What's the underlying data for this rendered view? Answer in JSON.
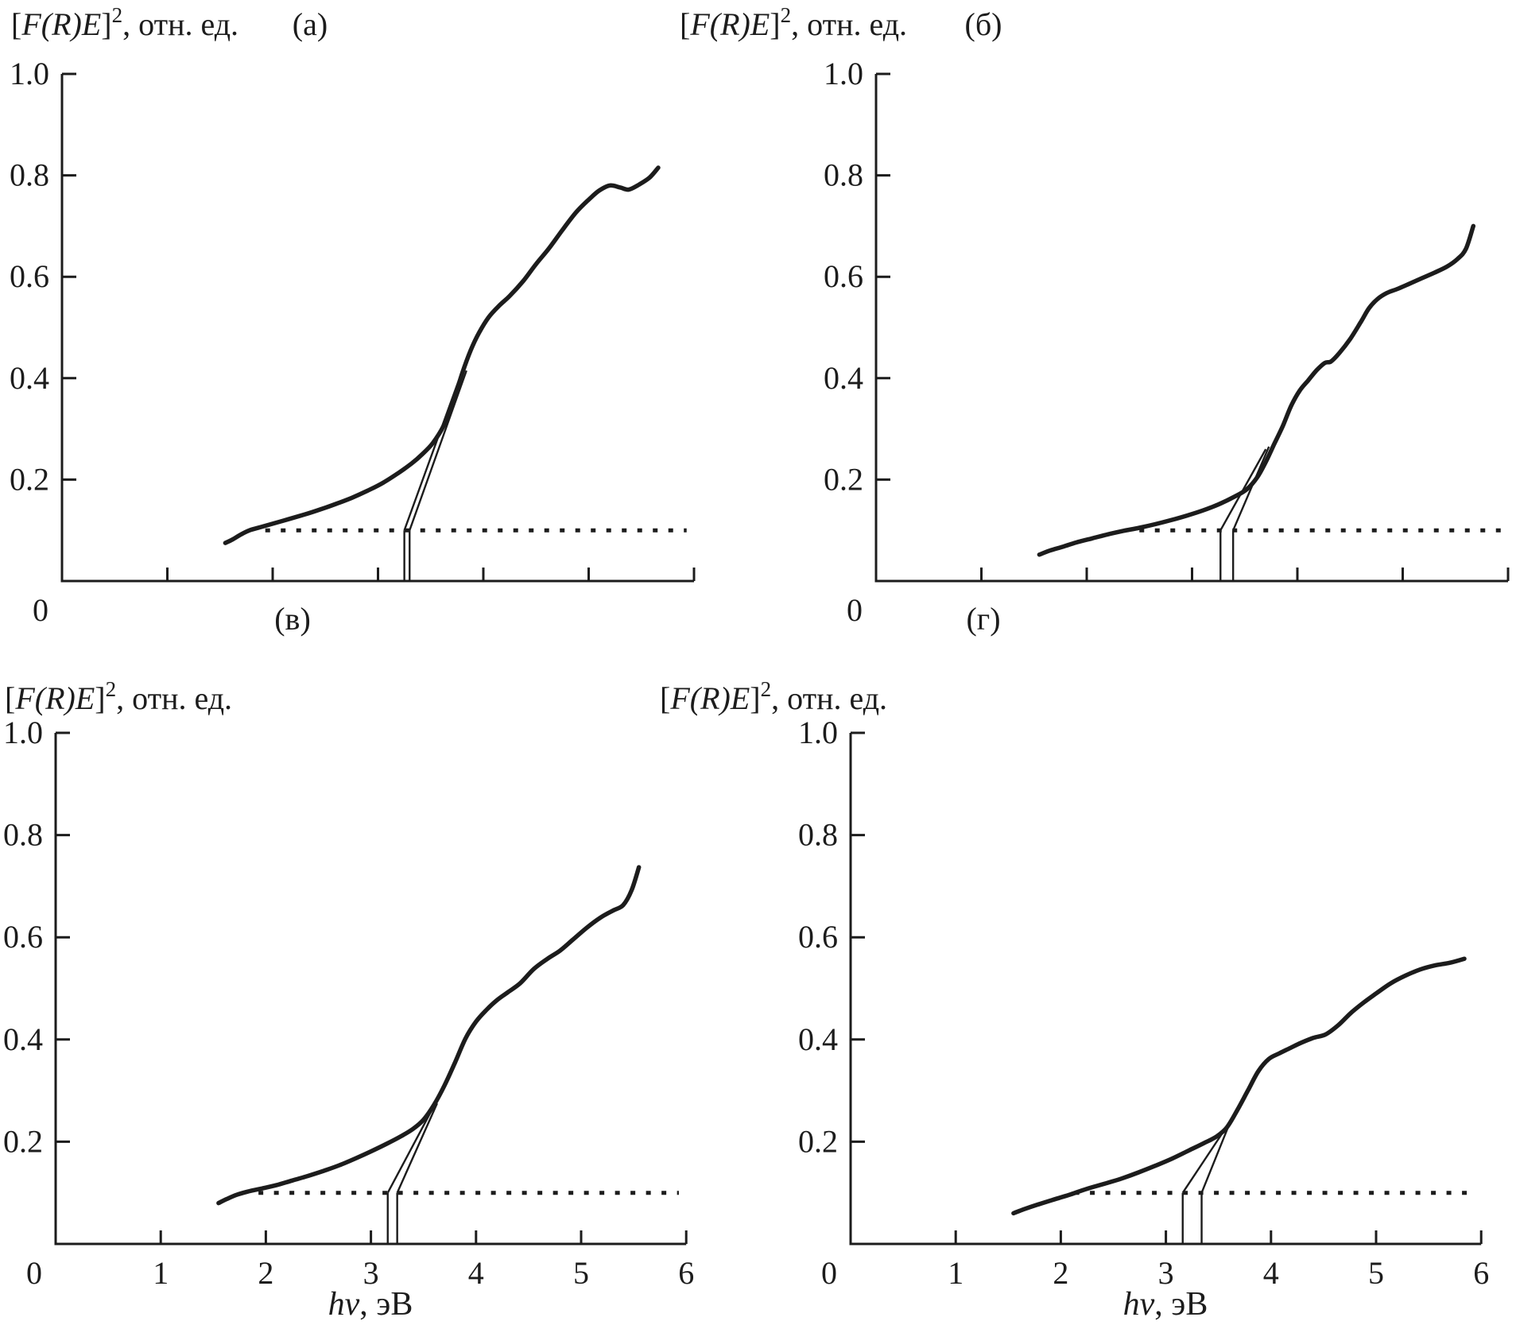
{
  "figure": {
    "background": "#ffffff",
    "ink_color": "#1c1c1c",
    "description": "Four-panel Tauc plot figure, Kubelka-Munk function squared vs photon energy, with tangent extrapolations to the 0.1 baseline marking optical band gaps"
  },
  "chart_data": [
    {
      "type": "line",
      "panel_label": "(а)",
      "title": "[F(R)E]², отн. ед.",
      "title_parts": {
        "open": "[",
        "body": "F(R)E",
        "close": "]",
        "sup": "2",
        "rest": ", отн. ед."
      },
      "xlabel": "",
      "xlabel_parts": null,
      "origin_label": "0",
      "x_tick_labels": [],
      "y_tick_labels": [
        "0.2",
        "0.4",
        "0.6",
        "0.8",
        "1.0"
      ],
      "xlim": [
        0,
        6
      ],
      "ylim": [
        0,
        1.0
      ],
      "grid": false,
      "legend": null,
      "baseline_y": 0.1,
      "baseline_x_range": [
        1.93,
        5.93
      ],
      "gap_marks_eV": [
        3.25,
        3.3
      ],
      "tangent_lines": [
        {
          "x1": 3.25,
          "y1": 0.1,
          "x2": 3.8,
          "y2": 0.415
        },
        {
          "x1": 3.3,
          "y1": 0.1,
          "x2": 3.84,
          "y2": 0.415
        }
      ],
      "curve": [
        [
          1.55,
          0.075
        ],
        [
          1.62,
          0.082
        ],
        [
          1.7,
          0.092
        ],
        [
          1.78,
          0.1
        ],
        [
          1.88,
          0.106
        ],
        [
          2.0,
          0.113
        ],
        [
          2.15,
          0.122
        ],
        [
          2.3,
          0.131
        ],
        [
          2.45,
          0.141
        ],
        [
          2.6,
          0.152
        ],
        [
          2.75,
          0.164
        ],
        [
          2.9,
          0.178
        ],
        [
          3.05,
          0.194
        ],
        [
          3.2,
          0.214
        ],
        [
          3.32,
          0.232
        ],
        [
          3.42,
          0.25
        ],
        [
          3.52,
          0.272
        ],
        [
          3.62,
          0.305
        ],
        [
          3.72,
          0.357
        ],
        [
          3.8,
          0.41
        ],
        [
          3.88,
          0.455
        ],
        [
          3.96,
          0.49
        ],
        [
          4.05,
          0.52
        ],
        [
          4.15,
          0.543
        ],
        [
          4.25,
          0.562
        ],
        [
          4.38,
          0.592
        ],
        [
          4.5,
          0.625
        ],
        [
          4.62,
          0.655
        ],
        [
          4.75,
          0.692
        ],
        [
          4.88,
          0.727
        ],
        [
          5.0,
          0.752
        ],
        [
          5.1,
          0.77
        ],
        [
          5.2,
          0.78
        ],
        [
          5.3,
          0.776
        ],
        [
          5.38,
          0.772
        ],
        [
          5.48,
          0.782
        ],
        [
          5.58,
          0.796
        ],
        [
          5.66,
          0.815
        ]
      ]
    },
    {
      "type": "line",
      "panel_label": "(б)",
      "title": "[F(R)E]², отн. ед.",
      "title_parts": {
        "open": "[",
        "body": "F(R)E",
        "close": "]",
        "sup": "2",
        "rest": ", отн. ед."
      },
      "xlabel": "",
      "xlabel_parts": null,
      "origin_label": "0",
      "x_tick_labels": [],
      "y_tick_labels": [
        "0.2",
        "0.4",
        "0.6",
        "0.8",
        "1.0"
      ],
      "xlim": [
        0,
        6
      ],
      "ylim": [
        0,
        1.0
      ],
      "grid": false,
      "legend": null,
      "baseline_y": 0.1,
      "baseline_x_range": [
        2.5,
        5.95
      ],
      "gap_marks_eV": [
        3.27,
        3.39
      ],
      "tangent_lines": [
        {
          "x1": 3.27,
          "y1": 0.1,
          "x2": 3.7,
          "y2": 0.26
        },
        {
          "x1": 3.39,
          "y1": 0.1,
          "x2": 3.73,
          "y2": 0.265
        }
      ],
      "curve": [
        [
          1.55,
          0.052
        ],
        [
          1.65,
          0.06
        ],
        [
          1.78,
          0.068
        ],
        [
          1.9,
          0.076
        ],
        [
          2.05,
          0.084
        ],
        [
          2.2,
          0.092
        ],
        [
          2.35,
          0.099
        ],
        [
          2.5,
          0.105
        ],
        [
          2.65,
          0.112
        ],
        [
          2.8,
          0.12
        ],
        [
          2.95,
          0.129
        ],
        [
          3.1,
          0.139
        ],
        [
          3.25,
          0.151
        ],
        [
          3.4,
          0.166
        ],
        [
          3.52,
          0.181
        ],
        [
          3.62,
          0.205
        ],
        [
          3.7,
          0.235
        ],
        [
          3.78,
          0.27
        ],
        [
          3.86,
          0.305
        ],
        [
          3.94,
          0.345
        ],
        [
          4.02,
          0.375
        ],
        [
          4.1,
          0.395
        ],
        [
          4.18,
          0.415
        ],
        [
          4.26,
          0.43
        ],
        [
          4.32,
          0.433
        ],
        [
          4.4,
          0.45
        ],
        [
          4.5,
          0.477
        ],
        [
          4.6,
          0.51
        ],
        [
          4.68,
          0.538
        ],
        [
          4.76,
          0.556
        ],
        [
          4.85,
          0.568
        ],
        [
          4.95,
          0.576
        ],
        [
          5.05,
          0.585
        ],
        [
          5.18,
          0.597
        ],
        [
          5.3,
          0.608
        ],
        [
          5.42,
          0.62
        ],
        [
          5.52,
          0.635
        ],
        [
          5.6,
          0.655
        ],
        [
          5.67,
          0.7
        ]
      ]
    },
    {
      "type": "line",
      "panel_label": "(в)",
      "title": "[F(R)E]², отн. ед.",
      "title_parts": {
        "open": "[",
        "body": "F(R)E",
        "close": "]",
        "sup": "2",
        "rest": ", отн. ед."
      },
      "xlabel": "hν, эВ",
      "xlabel_parts": {
        "italic": "hν",
        "rest": ", эВ"
      },
      "origin_label": "0",
      "x_tick_labels": [
        "0",
        "1",
        "2",
        "3",
        "4",
        "5",
        "6"
      ],
      "y_tick_labels": [
        "0.2",
        "0.4",
        "0.6",
        "0.8",
        "1.0"
      ],
      "xlim": [
        0,
        6
      ],
      "ylim": [
        0,
        1.0
      ],
      "grid": false,
      "legend": null,
      "baseline_y": 0.1,
      "baseline_x_range": [
        1.93,
        5.93
      ],
      "gap_marks_eV": [
        3.16,
        3.25
      ],
      "tangent_lines": [
        {
          "x1": 3.16,
          "y1": 0.1,
          "x2": 3.6,
          "y2": 0.27
        },
        {
          "x1": 3.25,
          "y1": 0.1,
          "x2": 3.63,
          "y2": 0.275
        }
      ],
      "curve": [
        [
          1.55,
          0.08
        ],
        [
          1.63,
          0.088
        ],
        [
          1.72,
          0.096
        ],
        [
          1.82,
          0.102
        ],
        [
          1.95,
          0.108
        ],
        [
          2.1,
          0.115
        ],
        [
          2.25,
          0.124
        ],
        [
          2.4,
          0.133
        ],
        [
          2.55,
          0.143
        ],
        [
          2.7,
          0.154
        ],
        [
          2.85,
          0.167
        ],
        [
          3.0,
          0.181
        ],
        [
          3.15,
          0.196
        ],
        [
          3.28,
          0.21
        ],
        [
          3.4,
          0.225
        ],
        [
          3.5,
          0.243
        ],
        [
          3.6,
          0.272
        ],
        [
          3.7,
          0.31
        ],
        [
          3.8,
          0.355
        ],
        [
          3.9,
          0.402
        ],
        [
          4.0,
          0.435
        ],
        [
          4.1,
          0.458
        ],
        [
          4.2,
          0.477
        ],
        [
          4.3,
          0.492
        ],
        [
          4.42,
          0.51
        ],
        [
          4.55,
          0.538
        ],
        [
          4.68,
          0.558
        ],
        [
          4.8,
          0.574
        ],
        [
          4.92,
          0.595
        ],
        [
          5.05,
          0.618
        ],
        [
          5.18,
          0.638
        ],
        [
          5.3,
          0.652
        ],
        [
          5.4,
          0.663
        ],
        [
          5.48,
          0.692
        ],
        [
          5.55,
          0.737
        ]
      ]
    },
    {
      "type": "line",
      "panel_label": "(г)",
      "title": "[F(R)E]², отн. ед.",
      "title_parts": {
        "open": "[",
        "body": "F(R)E",
        "close": "]",
        "sup": "2",
        "rest": ", отн. ед."
      },
      "xlabel": "hν, эВ",
      "xlabel_parts": {
        "italic": "hν",
        "rest": ", эВ"
      },
      "origin_label": "0",
      "x_tick_labels": [
        "0",
        "1",
        "2",
        "3",
        "4",
        "5",
        "6"
      ],
      "y_tick_labels": [
        "0.2",
        "0.4",
        "0.6",
        "0.8",
        "1.0"
      ],
      "xlim": [
        0,
        6
      ],
      "ylim": [
        0,
        1.0
      ],
      "grid": false,
      "legend": null,
      "baseline_y": 0.1,
      "baseline_x_range": [
        2.13,
        5.93
      ],
      "gap_marks_eV": [
        3.16,
        3.34
      ],
      "tangent_lines": [
        {
          "x1": 3.16,
          "y1": 0.1,
          "x2": 3.58,
          "y2": 0.23
        },
        {
          "x1": 3.34,
          "y1": 0.1,
          "x2": 3.63,
          "y2": 0.248
        }
      ],
      "curve": [
        [
          1.55,
          0.06
        ],
        [
          1.65,
          0.068
        ],
        [
          1.78,
          0.077
        ],
        [
          1.92,
          0.086
        ],
        [
          2.08,
          0.096
        ],
        [
          2.25,
          0.108
        ],
        [
          2.42,
          0.118
        ],
        [
          2.58,
          0.128
        ],
        [
          2.74,
          0.14
        ],
        [
          2.9,
          0.153
        ],
        [
          3.06,
          0.167
        ],
        [
          3.22,
          0.183
        ],
        [
          3.36,
          0.197
        ],
        [
          3.48,
          0.21
        ],
        [
          3.58,
          0.228
        ],
        [
          3.68,
          0.262
        ],
        [
          3.78,
          0.3
        ],
        [
          3.88,
          0.338
        ],
        [
          3.98,
          0.362
        ],
        [
          4.08,
          0.373
        ],
        [
          4.18,
          0.383
        ],
        [
          4.28,
          0.393
        ],
        [
          4.4,
          0.403
        ],
        [
          4.52,
          0.41
        ],
        [
          4.64,
          0.428
        ],
        [
          4.76,
          0.452
        ],
        [
          4.88,
          0.472
        ],
        [
          5.0,
          0.49
        ],
        [
          5.14,
          0.51
        ],
        [
          5.28,
          0.525
        ],
        [
          5.42,
          0.537
        ],
        [
          5.56,
          0.545
        ],
        [
          5.7,
          0.55
        ],
        [
          5.84,
          0.558
        ]
      ]
    }
  ]
}
